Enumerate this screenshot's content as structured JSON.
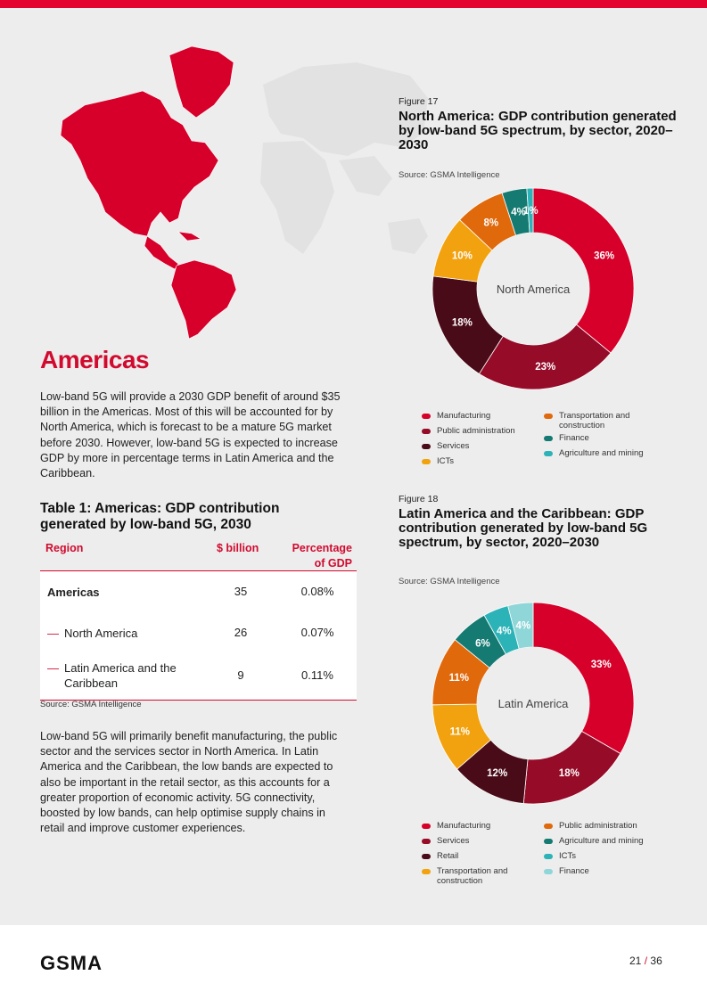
{
  "page": {
    "heading": "Americas",
    "intro_text": "Low-band 5G will provide a 2030 GDP benefit of around $35 billion in the Americas. Most of this will be accounted for by North America, which is forecast to be a mature 5G market before 2030. However, low-band 5G is expected to increase GDP by more in percentage terms in Latin America and the Caribbean.",
    "body_text": "Low-band 5G will primarily benefit manufacturing, the public sector and the services sector in North America. In Latin America and the Caribbean, the low bands are expected to also be important in the retail sector, as this accounts for a greater proportion of economic activity. 5G connectivity, boosted by low bands, can help optimise supply chains in retail and improve customer experiences.",
    "accent_color": "#e4032e"
  },
  "table": {
    "title": "Table 1: Americas: GDP contribution generated by low-band 5G, 2030",
    "headers": {
      "region": "Region",
      "billion": "$ billion",
      "pct": "Percentage of GDP"
    },
    "rows": [
      {
        "region": "Americas",
        "billion": "35",
        "pct": "0.08%"
      },
      {
        "region": "North America",
        "billion": "26",
        "pct": "0.07%"
      },
      {
        "region": "Latin America and the Caribbean",
        "billion": "9",
        "pct": "0.11%"
      }
    ],
    "source": "Source: GSMA Intelligence"
  },
  "chart_data": [
    {
      "type": "pie",
      "figure_label": "Figure 17",
      "title": "North America: GDP contribution generated by low-band 5G spectrum, by sector, 2020–2030",
      "source": "Source: GSMA Intelligence",
      "center_label": "North America",
      "slices": [
        {
          "name": "Manufacturing",
          "value": 36,
          "label": "36%",
          "color": "#d6002a"
        },
        {
          "name": "Public administration",
          "value": 23,
          "label": "23%",
          "color": "#950b28"
        },
        {
          "name": "Services",
          "value": 18,
          "label": "18%",
          "color": "#4a0b18"
        },
        {
          "name": "ICTs",
          "value": 10,
          "label": "10%",
          "color": "#f2a20f"
        },
        {
          "name": "Transportation and construction",
          "value": 8,
          "label": "8%",
          "color": "#e0690c"
        },
        {
          "name": "Finance",
          "value": 4,
          "label": "4%",
          "color": "#147a72"
        },
        {
          "name": "Agriculture and mining",
          "value": 1,
          "label": "1%",
          "color": "#2bb3b8"
        }
      ]
    },
    {
      "type": "pie",
      "figure_label": "Figure 18",
      "title": "Latin America and the Caribbean: GDP contribution generated by low-band 5G spectrum, by sector, 2020–2030",
      "source": "Source: GSMA Intelligence",
      "center_label": "Latin America",
      "slices": [
        {
          "name": "Manufacturing",
          "value": 33,
          "label": "33%",
          "color": "#d6002a"
        },
        {
          "name": "Services",
          "value": 18,
          "label": "18%",
          "color": "#950b28"
        },
        {
          "name": "Retail",
          "value": 12,
          "label": "12%",
          "color": "#4a0b18"
        },
        {
          "name": "Transportation and construction",
          "value": 11,
          "label": "11%",
          "color": "#f2a20f"
        },
        {
          "name": "Public administration",
          "value": 11,
          "label": "11%",
          "color": "#e0690c"
        },
        {
          "name": "Agriculture and mining",
          "value": 6,
          "label": "6%",
          "color": "#147a72"
        },
        {
          "name": "ICTs",
          "value": 4,
          "label": "4%",
          "color": "#2bb3b8"
        },
        {
          "name": "Finance",
          "value": 4,
          "label": "4%",
          "color": "#8fd6d8"
        }
      ]
    }
  ],
  "footer": {
    "logo": "GSMA",
    "page_current": "21",
    "page_sep": "/",
    "page_total": "36"
  }
}
